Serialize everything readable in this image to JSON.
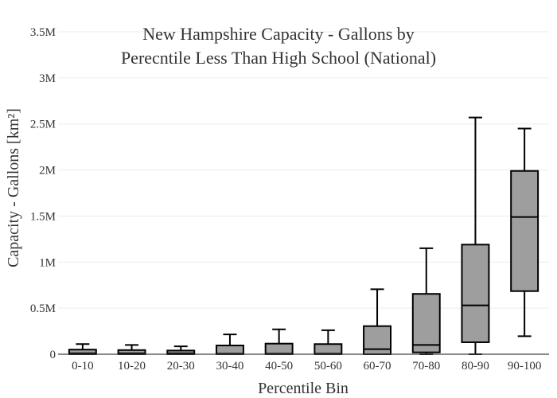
{
  "chart_data": {
    "type": "box",
    "title_lines": [
      "New Hampshire Capacity - Gallons by",
      "Perecntile Less Than High School (National)"
    ],
    "xlabel": "Percentile Bin",
    "ylabel": "Capacity - Gallons  [km²]",
    "ylim": [
      0,
      3500000
    ],
    "ytick_values": [
      0,
      500000,
      1000000,
      1500000,
      2000000,
      2500000,
      3000000,
      3500000
    ],
    "ytick_labels": [
      "0",
      "0.5M",
      "1M",
      "1.5M",
      "2M",
      "2.5M",
      "3M",
      "3.5M"
    ],
    "grid": true,
    "box_color": "#9e9e9e",
    "categories": [
      "0-10",
      "10-20",
      "20-30",
      "30-40",
      "40-50",
      "50-60",
      "60-70",
      "70-80",
      "80-90",
      "90-100"
    ],
    "boxes": [
      {
        "min": 0,
        "q1": 0,
        "median": 10000,
        "q3": 50000,
        "max": 110000
      },
      {
        "min": 0,
        "q1": 0,
        "median": 10000,
        "q3": 45000,
        "max": 100000
      },
      {
        "min": 0,
        "q1": 0,
        "median": 10000,
        "q3": 40000,
        "max": 85000
      },
      {
        "min": 0,
        "q1": 0,
        "median": 5000,
        "q3": 95000,
        "max": 215000
      },
      {
        "min": 0,
        "q1": 0,
        "median": 5000,
        "q3": 115000,
        "max": 270000
      },
      {
        "min": 0,
        "q1": 0,
        "median": 5000,
        "q3": 110000,
        "max": 260000
      },
      {
        "min": 0,
        "q1": 0,
        "median": 55000,
        "q3": 305000,
        "max": 705000
      },
      {
        "min": 0,
        "q1": 20000,
        "median": 100000,
        "q3": 655000,
        "max": 1150000
      },
      {
        "min": 0,
        "q1": 130000,
        "median": 530000,
        "q3": 1190000,
        "max": 2570000
      },
      {
        "min": 195000,
        "q1": 685000,
        "median": 1490000,
        "q3": 1990000,
        "max": 2450000
      }
    ]
  }
}
